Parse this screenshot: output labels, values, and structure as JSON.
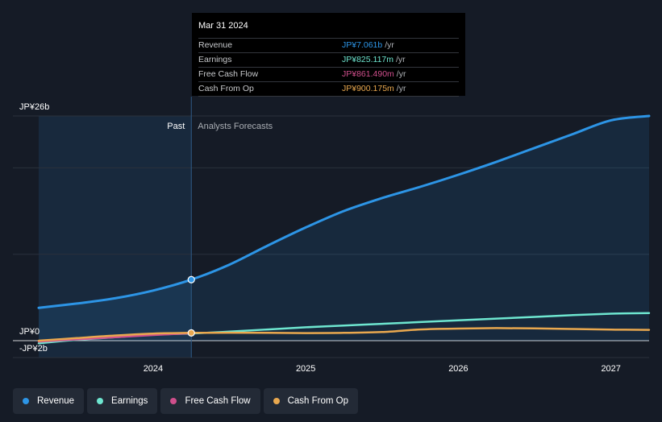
{
  "colors": {
    "revenue": "#2d95e6",
    "earnings": "#6ee6d0",
    "free_cash_flow": "#d04f8c",
    "cash_from_op": "#e9a84f",
    "background": "#151b26"
  },
  "tooltip": {
    "date": "Mar 31 2024",
    "rows": [
      {
        "label": "Revenue",
        "value": "JP¥7.061b",
        "unit": "/yr",
        "color": "#2d95e6"
      },
      {
        "label": "Earnings",
        "value": "JP¥825.117m",
        "unit": "/yr",
        "color": "#6ee6d0"
      },
      {
        "label": "Free Cash Flow",
        "value": "JP¥861.490m",
        "unit": "/yr",
        "color": "#d04f8c"
      },
      {
        "label": "Cash From Op",
        "value": "JP¥900.175m",
        "unit": "/yr",
        "color": "#e9a84f"
      }
    ]
  },
  "section_labels": {
    "past": "Past",
    "forecast": "Analysts Forecasts"
  },
  "legend": [
    {
      "label": "Revenue",
      "color": "#2d95e6"
    },
    {
      "label": "Earnings",
      "color": "#6ee6d0"
    },
    {
      "label": "Free Cash Flow",
      "color": "#d04f8c"
    },
    {
      "label": "Cash From Op",
      "color": "#e9a84f"
    }
  ],
  "chart_data": {
    "type": "line",
    "title": "",
    "xlabel": "",
    "ylabel": "",
    "unit": "JP¥ billions",
    "xlim": [
      2023.25,
      2027.25
    ],
    "ylim": [
      -2,
      26
    ],
    "y_tick_labels": [
      {
        "value": 26,
        "label": "JP¥26b"
      },
      {
        "value": 0,
        "label": "JP¥0"
      },
      {
        "value": -2,
        "label": "-JP¥2b"
      }
    ],
    "gridlines": [
      26,
      20,
      10,
      0
    ],
    "x_ticks": [
      {
        "value": 2024,
        "label": "2024"
      },
      {
        "value": 2025,
        "label": "2025"
      },
      {
        "value": 2026,
        "label": "2026"
      },
      {
        "value": 2027,
        "label": "2027"
      }
    ],
    "past_end": 2024.25,
    "highlight_date": "Mar 31 2024",
    "series": [
      {
        "name": "Revenue",
        "color": "#2d95e6",
        "area": true,
        "points": [
          [
            2023.25,
            3.8
          ],
          [
            2023.5,
            4.3
          ],
          [
            2023.75,
            4.9
          ],
          [
            2024.0,
            5.8
          ],
          [
            2024.25,
            7.06
          ],
          [
            2024.5,
            8.8
          ],
          [
            2024.75,
            11.0
          ],
          [
            2025.0,
            13.1
          ],
          [
            2025.25,
            15.0
          ],
          [
            2025.5,
            16.5
          ],
          [
            2025.75,
            17.8
          ],
          [
            2026.0,
            19.2
          ],
          [
            2026.25,
            20.7
          ],
          [
            2026.5,
            22.3
          ],
          [
            2026.75,
            23.9
          ],
          [
            2027.0,
            25.5
          ],
          [
            2027.25,
            26.0
          ]
        ]
      },
      {
        "name": "Earnings",
        "color": "#6ee6d0",
        "area": false,
        "points": [
          [
            2023.25,
            -0.3
          ],
          [
            2023.5,
            0.1
          ],
          [
            2023.75,
            0.4
          ],
          [
            2024.0,
            0.7
          ],
          [
            2024.25,
            0.83
          ],
          [
            2024.5,
            1.05
          ],
          [
            2024.75,
            1.3
          ],
          [
            2025.0,
            1.55
          ],
          [
            2025.25,
            1.75
          ],
          [
            2025.5,
            1.95
          ],
          [
            2025.75,
            2.15
          ],
          [
            2026.0,
            2.35
          ],
          [
            2026.25,
            2.55
          ],
          [
            2026.5,
            2.75
          ],
          [
            2026.75,
            2.95
          ],
          [
            2027.0,
            3.12
          ],
          [
            2027.25,
            3.2
          ]
        ]
      },
      {
        "name": "Free Cash Flow",
        "color": "#d04f8c",
        "area": false,
        "points": [
          [
            2023.25,
            -0.1
          ],
          [
            2023.5,
            0.15
          ],
          [
            2023.75,
            0.4
          ],
          [
            2024.0,
            0.65
          ],
          [
            2024.25,
            0.86
          ]
        ]
      },
      {
        "name": "Cash From Op",
        "color": "#e9a84f",
        "area": false,
        "points": [
          [
            2023.25,
            0.0
          ],
          [
            2023.5,
            0.3
          ],
          [
            2023.75,
            0.6
          ],
          [
            2024.0,
            0.82
          ],
          [
            2024.25,
            0.9
          ],
          [
            2024.5,
            0.92
          ],
          [
            2024.75,
            0.9
          ],
          [
            2025.0,
            0.88
          ],
          [
            2025.25,
            0.9
          ],
          [
            2025.5,
            1.0
          ],
          [
            2025.75,
            1.3
          ],
          [
            2026.0,
            1.4
          ],
          [
            2026.25,
            1.45
          ],
          [
            2026.5,
            1.42
          ],
          [
            2026.75,
            1.35
          ],
          [
            2027.0,
            1.28
          ],
          [
            2027.25,
            1.25
          ]
        ]
      }
    ]
  }
}
